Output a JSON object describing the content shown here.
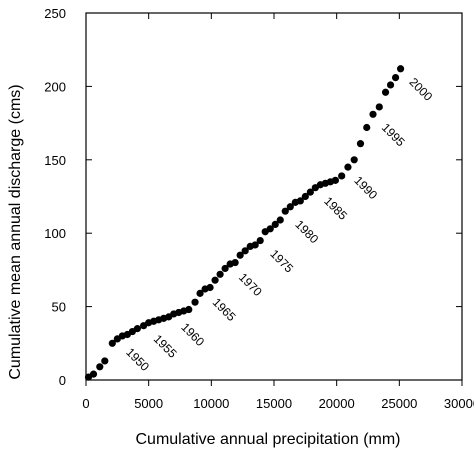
{
  "chart_data": {
    "type": "scatter",
    "title": "",
    "xlabel": "Cumulative annual precipitation (mm)",
    "ylabel": "Cumulative mean annual discharge (cms)",
    "xlim": [
      0,
      30000
    ],
    "ylim": [
      0,
      250
    ],
    "x_ticks": [
      0,
      5000,
      10000,
      15000,
      20000,
      25000,
      30000
    ],
    "y_ticks": [
      0,
      50,
      100,
      150,
      200,
      250
    ],
    "x_tick_labels": [
      "0",
      "5000",
      "10000",
      "15000",
      "20000",
      "25000",
      "30000"
    ],
    "y_tick_labels": [
      "0",
      "50",
      "100",
      "150",
      "200",
      "250"
    ],
    "grid": false,
    "marker_color": "#000000",
    "series": [
      {
        "x": [
          200,
          600,
          1100,
          1500,
          2100,
          2500,
          2900,
          3300,
          3700,
          4100,
          4600,
          5000,
          5400,
          5800,
          6200,
          6600,
          7000,
          7400,
          7800,
          8200,
          8700,
          9100,
          9500,
          9900,
          10300,
          10700,
          11100,
          11500,
          11900,
          12300,
          12700,
          13100,
          13500,
          13900,
          14300,
          14700,
          15100,
          15500,
          15900,
          16300,
          16700,
          17100,
          17500,
          17900,
          18300,
          18700,
          19100,
          19500,
          19900,
          20400,
          20900,
          21400,
          21900,
          22400,
          22900,
          23400,
          23900,
          24300,
          24700,
          25100
        ],
        "y": [
          2,
          4,
          9,
          13,
          25,
          28,
          30,
          31,
          33,
          35,
          37,
          39,
          40,
          41,
          42,
          43,
          45,
          46,
          47,
          48,
          53,
          59,
          62,
          63,
          68,
          72,
          76,
          79,
          80,
          85,
          88,
          91,
          92,
          95,
          101,
          103,
          106,
          109,
          115,
          118,
          121,
          122,
          125,
          128,
          131,
          133,
          134,
          135,
          136,
          139,
          145,
          150,
          161,
          172,
          181,
          186,
          196,
          201,
          206,
          212
        ]
      }
    ],
    "annotations": [
      "1950",
      "1955",
      "1960",
      "1965",
      "1970",
      "1975",
      "1980",
      "1985",
      "1990",
      "1995",
      "2000"
    ],
    "annotation_anchor_x": [
      2500,
      4700,
      6900,
      9400,
      11500,
      14000,
      16000,
      18300,
      20700,
      22900,
      25100
    ]
  }
}
